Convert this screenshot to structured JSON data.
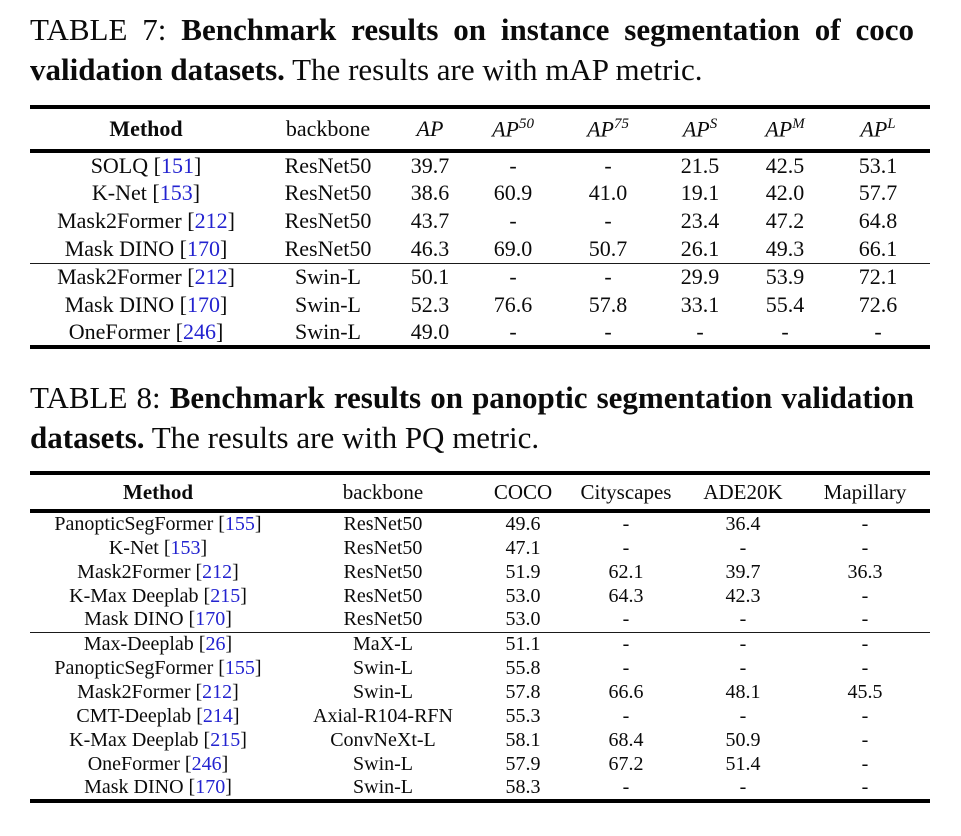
{
  "page": {
    "background_color": "#ffffff",
    "text_color": "#0b0b0b",
    "citation_color": "#2323d0"
  },
  "tables": [
    {
      "id": "table-7",
      "caption": {
        "prefix": "TABLE 7:",
        "bold": "Benchmark results on instance segmentation of coco validation datasets.",
        "rest": "The results are with mAP metric."
      },
      "columns": [
        {
          "key": "method",
          "label": "Method",
          "bold": true
        },
        {
          "key": "backbone",
          "label": "backbone"
        },
        {
          "key": "ap",
          "label": "AP",
          "math": true
        },
        {
          "key": "ap50",
          "label": "AP",
          "sup": "50",
          "math": true
        },
        {
          "key": "ap75",
          "label": "AP",
          "sup": "75",
          "math": true
        },
        {
          "key": "ap-s",
          "label": "AP",
          "sup": "S",
          "math": true
        },
        {
          "key": "ap-m",
          "label": "AP",
          "sup": "M",
          "math": true
        },
        {
          "key": "ap-l",
          "label": "AP",
          "sup": "L",
          "math": true
        }
      ],
      "groups": [
        {
          "rows": [
            {
              "method": "SOLQ",
              "cite": "151",
              "cells": [
                "ResNet50",
                "39.7",
                "-",
                "-",
                "21.5",
                "42.5",
                "53.1"
              ]
            },
            {
              "method": "K-Net",
              "cite": "153",
              "cells": [
                "ResNet50",
                "38.6",
                "60.9",
                "41.0",
                "19.1",
                "42.0",
                "57.7"
              ]
            },
            {
              "method": "Mask2Former",
              "cite": "212",
              "cells": [
                "ResNet50",
                "43.7",
                "-",
                "-",
                "23.4",
                "47.2",
                "64.8"
              ]
            },
            {
              "method": "Mask DINO",
              "cite": "170",
              "cells": [
                "ResNet50",
                "46.3",
                "69.0",
                "50.7",
                "26.1",
                "49.3",
                "66.1"
              ]
            }
          ]
        },
        {
          "rows": [
            {
              "method": "Mask2Former",
              "cite": "212",
              "cells": [
                "Swin-L",
                "50.1",
                "-",
                "-",
                "29.9",
                "53.9",
                "72.1"
              ]
            },
            {
              "method": "Mask DINO",
              "cite": "170",
              "cells": [
                "Swin-L",
                "52.3",
                "76.6",
                "57.8",
                "33.1",
                "55.4",
                "72.6"
              ]
            },
            {
              "method": "OneFormer",
              "cite": "246",
              "cells": [
                "Swin-L",
                "49.0",
                "-",
                "-",
                "-",
                "-",
                "-"
              ]
            }
          ]
        }
      ]
    },
    {
      "id": "table-8",
      "caption": {
        "prefix": "TABLE 8:",
        "bold": "Benchmark results on panoptic segmentation validation datasets.",
        "rest": "The results are with PQ metric."
      },
      "columns": [
        {
          "key": "method",
          "label": "Method",
          "bold": true
        },
        {
          "key": "backbone",
          "label": "backbone"
        },
        {
          "key": "coco",
          "label": "COCO"
        },
        {
          "key": "cityscapes",
          "label": "Cityscapes"
        },
        {
          "key": "ade20k",
          "label": "ADE20K"
        },
        {
          "key": "mapillary",
          "label": "Mapillary"
        }
      ],
      "groups": [
        {
          "rows": [
            {
              "method": "PanopticSegFormer",
              "cite": "155",
              "cells": [
                "ResNet50",
                "49.6",
                "-",
                "36.4",
                "-"
              ]
            },
            {
              "method": "K-Net",
              "cite": "153",
              "cells": [
                "ResNet50",
                "47.1",
                "-",
                "-",
                "-"
              ]
            },
            {
              "method": "Mask2Former",
              "cite": "212",
              "cells": [
                "ResNet50",
                "51.9",
                "62.1",
                "39.7",
                "36.3"
              ]
            },
            {
              "method": "K-Max Deeplab",
              "cite": "215",
              "cells": [
                "ResNet50",
                "53.0",
                "64.3",
                "42.3",
                "-"
              ]
            },
            {
              "method": "Mask DINO",
              "cite": "170",
              "cells": [
                "ResNet50",
                "53.0",
                "-",
                "-",
                "-"
              ]
            }
          ]
        },
        {
          "rows": [
            {
              "method": "Max-Deeplab",
              "cite": "26",
              "cells": [
                "MaX-L",
                "51.1",
                "-",
                "-",
                "-"
              ]
            },
            {
              "method": "PanopticSegFormer",
              "cite": "155",
              "cells": [
                "Swin-L",
                "55.8",
                "-",
                "-",
                "-"
              ]
            },
            {
              "method": "Mask2Former",
              "cite": "212",
              "cells": [
                "Swin-L",
                "57.8",
                "66.6",
                "48.1",
                "45.5"
              ]
            },
            {
              "method": "CMT-Deeplab",
              "cite": "214",
              "cells": [
                "Axial-R104-RFN",
                "55.3",
                "-",
                "-",
                "-"
              ]
            },
            {
              "method": "K-Max Deeplab",
              "cite": "215",
              "cells": [
                "ConvNeXt-L",
                "58.1",
                "68.4",
                "50.9",
                "-"
              ]
            },
            {
              "method": "OneFormer",
              "cite": "246",
              "cells": [
                "Swin-L",
                "57.9",
                "67.2",
                "51.4",
                "-"
              ]
            },
            {
              "method": "Mask DINO",
              "cite": "170",
              "cells": [
                "Swin-L",
                "58.3",
                "-",
                "-",
                "-"
              ]
            }
          ]
        }
      ]
    }
  ]
}
